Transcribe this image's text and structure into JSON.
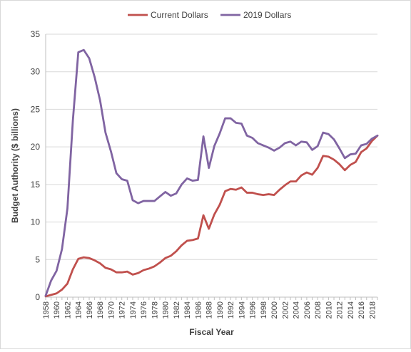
{
  "chart_data": {
    "type": "line",
    "title": "",
    "xlabel": "Fiscal Year",
    "ylabel": "Budget Authority ($ billions)",
    "ylim": [
      0,
      35
    ],
    "yticks": [
      0,
      5,
      10,
      15,
      20,
      25,
      30,
      35
    ],
    "xlim": [
      1958,
      2019
    ],
    "xticks": [
      1958,
      1960,
      1962,
      1964,
      1966,
      1968,
      1970,
      1972,
      1974,
      1976,
      1978,
      1980,
      1982,
      1984,
      1986,
      1988,
      1990,
      1992,
      1994,
      1996,
      1998,
      2000,
      2002,
      2004,
      2006,
      2008,
      2010,
      2012,
      2014,
      2016,
      2018
    ],
    "grid": "horizontal",
    "legend": "top-center",
    "x": [
      1958,
      1959,
      1960,
      1961,
      1962,
      1963,
      1964,
      1965,
      1966,
      1967,
      1968,
      1969,
      1970,
      1971,
      1972,
      1973,
      1974,
      1975,
      1976,
      1977,
      1978,
      1979,
      1980,
      1981,
      1982,
      1983,
      1984,
      1985,
      1986,
      1987,
      1988,
      1989,
      1990,
      1991,
      1992,
      1993,
      1994,
      1995,
      1996,
      1997,
      1998,
      1999,
      2000,
      2001,
      2002,
      2003,
      2004,
      2005,
      2006,
      2007,
      2008,
      2009,
      2010,
      2011,
      2012,
      2013,
      2014,
      2015,
      2016,
      2017,
      2018,
      2019
    ],
    "series": [
      {
        "name": "Current Dollars",
        "color": "#c0504d",
        "values": [
          0.1,
          0.3,
          0.5,
          1.0,
          1.8,
          3.7,
          5.1,
          5.3,
          5.2,
          4.9,
          4.5,
          3.9,
          3.7,
          3.3,
          3.3,
          3.4,
          3.0,
          3.2,
          3.6,
          3.8,
          4.1,
          4.6,
          5.2,
          5.5,
          6.1,
          6.9,
          7.5,
          7.6,
          7.8,
          10.9,
          9.1,
          11.0,
          12.3,
          14.1,
          14.4,
          14.3,
          14.6,
          13.9,
          13.9,
          13.7,
          13.6,
          13.7,
          13.6,
          14.3,
          14.9,
          15.4,
          15.4,
          16.2,
          16.6,
          16.3,
          17.2,
          18.8,
          18.7,
          18.3,
          17.7,
          16.9,
          17.6,
          18.0,
          19.3,
          19.8,
          20.8,
          21.5
        ]
      },
      {
        "name": "2019 Dollars",
        "color": "#8064a2",
        "values": [
          0.2,
          2.2,
          3.5,
          6.4,
          11.8,
          23.5,
          32.6,
          32.9,
          31.8,
          29.3,
          26.2,
          21.9,
          19.4,
          16.5,
          15.7,
          15.5,
          12.9,
          12.5,
          12.8,
          12.8,
          12.8,
          13.4,
          14.0,
          13.5,
          13.8,
          15.0,
          15.8,
          15.5,
          15.6,
          21.4,
          17.2,
          20.1,
          21.8,
          23.8,
          23.8,
          23.2,
          23.1,
          21.5,
          21.2,
          20.5,
          20.2,
          19.9,
          19.5,
          19.9,
          20.5,
          20.7,
          20.2,
          20.7,
          20.6,
          19.6,
          20.1,
          21.9,
          21.7,
          21.0,
          19.8,
          18.5,
          19.0,
          19.1,
          20.2,
          20.4,
          21.1,
          21.5
        ]
      }
    ]
  }
}
